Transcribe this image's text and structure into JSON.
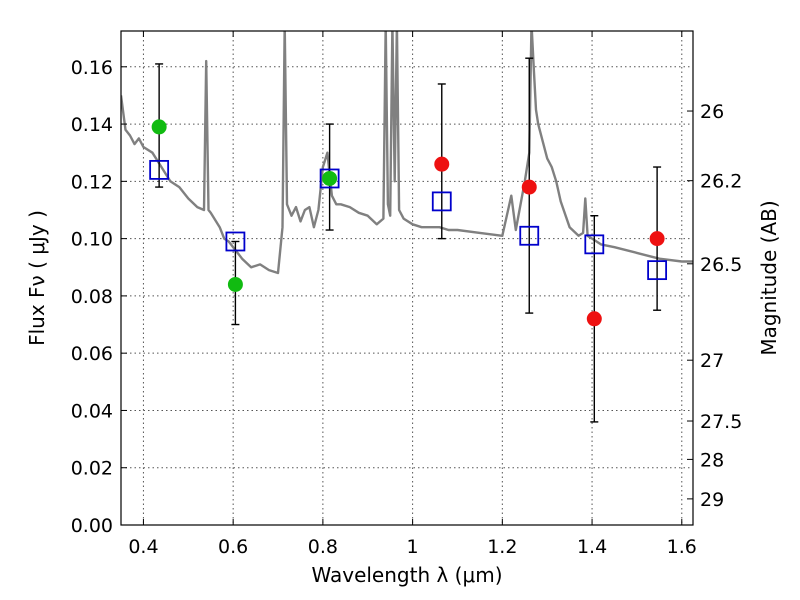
{
  "chart_data": {
    "type": "scatter",
    "xlabel": "Wavelength  λ (μm)",
    "ylabel": "Flux  Fν  ( μJy )",
    "y2label": "Magnitude (AB)",
    "xlim": [
      0.35,
      1.625
    ],
    "ylim": [
      0.0,
      0.1725
    ],
    "xticks": [
      0.4,
      0.6,
      0.8,
      1.0,
      1.2,
      1.4,
      1.6
    ],
    "xtick_labels": [
      "0.4",
      "0.6",
      "0.8",
      "1",
      "1.2",
      "1.4",
      "1.6"
    ],
    "yticks": [
      0.0,
      0.02,
      0.04,
      0.06,
      0.08,
      0.1,
      0.12,
      0.14,
      0.16
    ],
    "ytick_labels": [
      "0.00",
      "0.02",
      "0.04",
      "0.06",
      "0.08",
      "0.10",
      "0.12",
      "0.14",
      "0.16"
    ],
    "y2ticks": [
      {
        "mag": 26.0,
        "label": "26"
      },
      {
        "mag": 26.2,
        "label": "26.2"
      },
      {
        "mag": 26.5,
        "label": "26.5"
      },
      {
        "mag": 27.0,
        "label": "27"
      },
      {
        "mag": 27.5,
        "label": "27.5"
      },
      {
        "mag": 28.0,
        "label": "28"
      },
      {
        "mag": 29.0,
        "label": "29"
      }
    ],
    "grid": true,
    "colors": {
      "spectrum": "#808080",
      "model": "#0000cc",
      "green": "#11bb11",
      "red": "#ee1111",
      "errorbar": "#000000"
    },
    "series": [
      {
        "kind": "spectrum",
        "x": [
          0.35,
          0.36,
          0.37,
          0.38,
          0.39,
          0.4,
          0.42,
          0.44,
          0.46,
          0.48,
          0.5,
          0.52,
          0.535,
          0.54,
          0.545,
          0.55,
          0.57,
          0.58,
          0.59,
          0.6,
          0.62,
          0.64,
          0.66,
          0.68,
          0.7,
          0.71,
          0.715,
          0.72,
          0.73,
          0.74,
          0.75,
          0.76,
          0.77,
          0.78,
          0.79,
          0.8,
          0.81,
          0.82,
          0.83,
          0.84,
          0.86,
          0.88,
          0.9,
          0.92,
          0.935,
          0.94,
          0.945,
          0.95,
          0.955,
          0.96,
          0.965,
          0.97,
          0.98,
          1.0,
          1.02,
          1.04,
          1.06,
          1.08,
          1.1,
          1.15,
          1.2,
          1.22,
          1.23,
          1.25,
          1.26,
          1.265,
          1.27,
          1.275,
          1.28,
          1.29,
          1.3,
          1.31,
          1.32,
          1.33,
          1.35,
          1.37,
          1.38,
          1.385,
          1.39,
          1.4,
          1.42,
          1.45,
          1.5,
          1.55,
          1.6,
          1.625
        ],
        "y": [
          0.15,
          0.138,
          0.136,
          0.133,
          0.135,
          0.132,
          0.13,
          0.125,
          0.12,
          0.118,
          0.114,
          0.111,
          0.11,
          0.162,
          0.11,
          0.109,
          0.104,
          0.1,
          0.099,
          0.097,
          0.093,
          0.09,
          0.091,
          0.089,
          0.088,
          0.104,
          0.175,
          0.112,
          0.108,
          0.111,
          0.106,
          0.11,
          0.111,
          0.104,
          0.11,
          0.125,
          0.13,
          0.115,
          0.112,
          0.112,
          0.111,
          0.109,
          0.108,
          0.105,
          0.107,
          0.175,
          0.112,
          0.108,
          0.175,
          0.12,
          0.175,
          0.11,
          0.107,
          0.105,
          0.104,
          0.104,
          0.104,
          0.103,
          0.103,
          0.102,
          0.101,
          0.115,
          0.103,
          0.12,
          0.13,
          0.175,
          0.16,
          0.145,
          0.14,
          0.134,
          0.128,
          0.125,
          0.12,
          0.113,
          0.104,
          0.101,
          0.102,
          0.114,
          0.101,
          0.1,
          0.098,
          0.097,
          0.095,
          0.093,
          0.092,
          0.092
        ]
      },
      {
        "kind": "model-squares",
        "x": [
          0.435,
          0.605,
          0.815,
          1.065,
          1.26,
          1.405,
          1.545
        ],
        "y": [
          0.124,
          0.099,
          0.121,
          0.113,
          0.101,
          0.098,
          0.089
        ]
      },
      {
        "kind": "observed-green",
        "x": [
          0.435,
          0.605,
          0.815
        ],
        "y": [
          0.139,
          0.084,
          0.121
        ]
      },
      {
        "kind": "observed-red",
        "x": [
          1.065,
          1.26,
          1.405,
          1.545
        ],
        "y": [
          0.126,
          0.118,
          0.072,
          0.1
        ]
      },
      {
        "kind": "errorbars",
        "x": [
          0.435,
          0.605,
          0.815,
          1.065,
          1.26,
          1.405,
          1.545
        ],
        "low": [
          0.118,
          0.07,
          0.103,
          0.1,
          0.074,
          0.036,
          0.075
        ],
        "high": [
          0.161,
          0.099,
          0.14,
          0.154,
          0.163,
          0.108,
          0.125
        ]
      }
    ]
  }
}
